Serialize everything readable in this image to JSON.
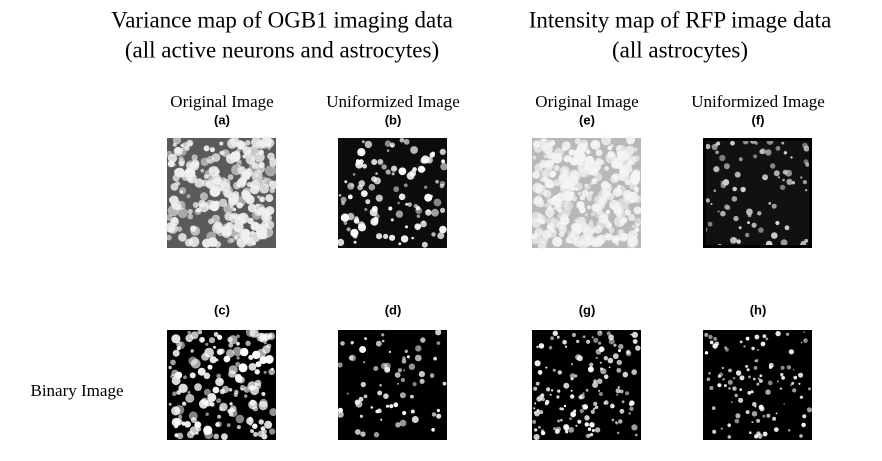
{
  "headers": [
    {
      "line1": "Variance map of OGB1 imaging data",
      "line2": "(all active neurons and astrocytes)"
    },
    {
      "line1": "Intensity map of RFP image data",
      "line2": "(all astrocytes)"
    }
  ],
  "column_labels": [
    "Original Image",
    "Uniformized Image",
    "Original Image",
    "Uniformized Image"
  ],
  "panels": [
    {
      "letter": "(a)"
    },
    {
      "letter": "(b)"
    },
    {
      "letter": "(e)"
    },
    {
      "letter": "(f)"
    },
    {
      "letter": "(c)"
    },
    {
      "letter": "(d)"
    },
    {
      "letter": "(g)"
    },
    {
      "letter": "(h)"
    }
  ],
  "row_label": "Binary Image"
}
